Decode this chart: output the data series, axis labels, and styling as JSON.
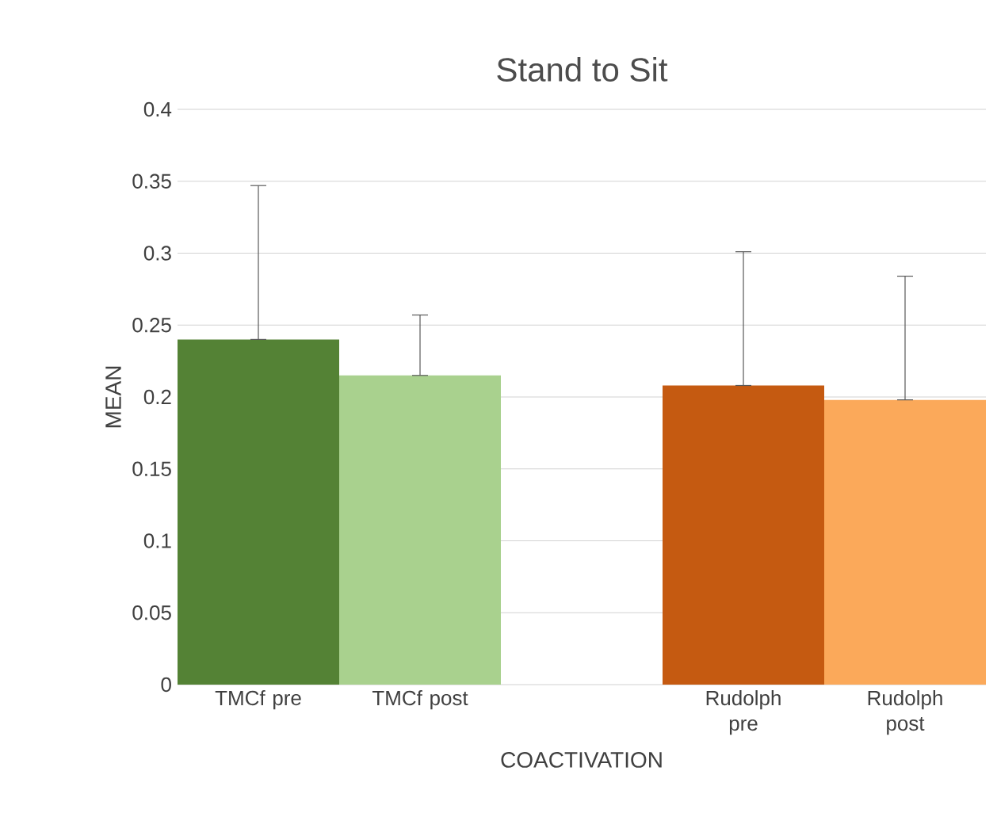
{
  "chart_data": {
    "type": "bar",
    "title": "Stand to Sit",
    "xlabel": "COACTIVATION",
    "ylabel": "MEAN",
    "categories": [
      "TMCf pre",
      "TMCf post",
      null,
      "Rudolph pre",
      "Rudolph post"
    ],
    "values": [
      0.24,
      0.215,
      null,
      0.208,
      0.198
    ],
    "colors": [
      "#548235",
      "#a9d18e",
      "#ffffff",
      "#c55a11",
      "#fba95a"
    ],
    "errors": [
      [
        0.24,
        0.347
      ],
      [
        0.215,
        0.257
      ],
      null,
      [
        0.208,
        0.301
      ],
      [
        0.198,
        0.284
      ]
    ],
    "ylim": [
      0,
      0.4
    ],
    "yticks": [
      0,
      0.05,
      0.1,
      0.15,
      0.2,
      0.25,
      0.3,
      0.35,
      0.4
    ],
    "grid": "y"
  }
}
